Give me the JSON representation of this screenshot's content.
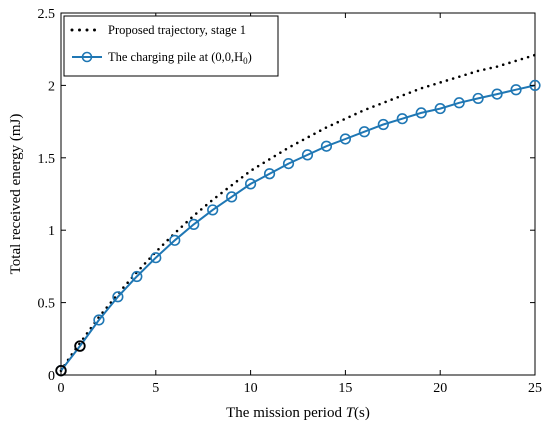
{
  "chart_data": {
    "type": "line",
    "title": "",
    "xlabel_prefix": "The mission period ",
    "xlabel_var": "T",
    "xlabel_suffix": "(s)",
    "ylabel": "Total received energy (mJ)",
    "xlim": [
      0,
      25
    ],
    "ylim": [
      0,
      2.5
    ],
    "xticks": [
      0,
      5,
      10,
      15,
      20,
      25
    ],
    "yticks": [
      0,
      0.5,
      1,
      1.5,
      2,
      2.5
    ],
    "xtick_labels": [
      "0",
      "5",
      "10",
      "15",
      "20",
      "25"
    ],
    "ytick_labels": [
      "0",
      "0.5",
      "1",
      "1.5",
      "2",
      "2.5"
    ],
    "grid": false,
    "legend_position": "top-left",
    "series": [
      {
        "name": "Proposed trajectory, stage 1",
        "style": "dotted",
        "color": "#000000",
        "x": [
          0,
          0.5,
          1,
          1.5,
          2,
          2.5,
          3,
          4,
          5,
          6,
          7,
          8,
          9,
          10,
          11,
          12,
          13,
          14,
          15,
          16,
          17,
          18,
          19,
          20,
          21,
          22,
          23,
          24,
          25
        ],
        "y": [
          0.03,
          0.13,
          0.22,
          0.31,
          0.4,
          0.48,
          0.56,
          0.71,
          0.85,
          0.98,
          1.1,
          1.21,
          1.31,
          1.41,
          1.49,
          1.57,
          1.64,
          1.71,
          1.77,
          1.83,
          1.88,
          1.93,
          1.98,
          2.02,
          2.06,
          2.1,
          2.13,
          2.17,
          2.21
        ]
      },
      {
        "name": "The charging pile at (0,0,H",
        "name_sub": "0",
        "name_end": ")",
        "style": "solid-circle",
        "color": "#1f77b4",
        "x": [
          0,
          1,
          2,
          3,
          4,
          5,
          6,
          7,
          8,
          9,
          10,
          11,
          12,
          13,
          14,
          15,
          16,
          17,
          18,
          19,
          20,
          21,
          22,
          23,
          24,
          25
        ],
        "y": [
          0.03,
          0.2,
          0.38,
          0.54,
          0.68,
          0.81,
          0.93,
          1.04,
          1.14,
          1.23,
          1.32,
          1.39,
          1.46,
          1.52,
          1.58,
          1.63,
          1.68,
          1.73,
          1.77,
          1.81,
          1.84,
          1.88,
          1.91,
          1.94,
          1.97,
          2.0
        ]
      }
    ],
    "highlighted_points": [
      {
        "x": 0,
        "y": 0.03
      },
      {
        "x": 1,
        "y": 0.2
      }
    ]
  }
}
